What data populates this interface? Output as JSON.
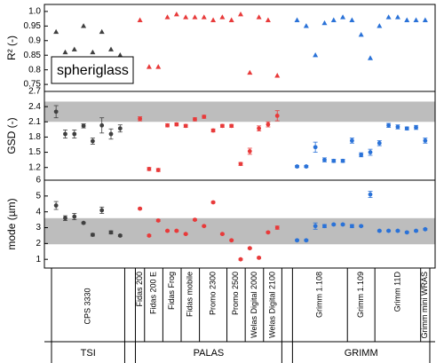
{
  "chart_data": {
    "type": "scatter",
    "annotation": "spheriglass",
    "groups": [
      {
        "name": "TSI",
        "color": "#404040",
        "devices": [
          "CPS 3330"
        ]
      },
      {
        "name": "PALAS",
        "color": "#e83a3a",
        "devices": [
          "Fidas 200",
          "Fidas 200 E",
          "Fidas Frog",
          "Fidas mobile",
          "Promo 2300",
          "Promo 2500",
          "Welas Digital 2000",
          "Welas Digital 2100"
        ]
      },
      {
        "name": "GRIMM",
        "color": "#2a72d8",
        "devices": [
          "Grimm 1.108",
          "Grimm 1.109",
          "Grimm 11D",
          "Grimm mini WRAS"
        ]
      }
    ],
    "panels": [
      {
        "ylabel": "R² (-)",
        "marker": "triangle",
        "ylim": [
          0.726,
          1.024
        ],
        "yticks": [
          0.75,
          0.8,
          0.85,
          0.9,
          0.95,
          {
            "value": 1,
            "label": "1.0"
          }
        ],
        "values": [
          [
            [
              0.93,
              0.86,
              0.87,
              0.95,
              0.86,
              0.93,
              0.87,
              0.85
            ]
          ],
          [
            [
              0.97
            ],
            [
              0.81,
              0.81
            ],
            [
              0.98,
              0.99
            ],
            [
              0.98,
              0.98
            ],
            [
              0.98,
              0.97,
              0.98
            ],
            [
              0.97,
              0.99
            ],
            [
              0.79,
              0.98
            ],
            [
              0.97,
              0.78
            ]
          ],
          [
            [
              0.97,
              0.95,
              0.85,
              0.96,
              0.97,
              0.98
            ],
            [
              0.97,
              0.92,
              0.84
            ],
            [
              0.95,
              0.98,
              0.98,
              0.97,
              0.97
            ],
            [
              0.97
            ]
          ]
        ]
      },
      {
        "ylabel": "GSD (-)",
        "marker": "circle",
        "ylim": [
          0.95,
          2.7
        ],
        "yticks": [
          1.2,
          1.5,
          1.8,
          2.1,
          2.4,
          2.7
        ],
        "shaded": [
          2.1,
          2.5
        ],
        "values": [
          [
            [
              2.3,
              1.86,
              1.86,
              2.02,
              1.72,
              2.03,
              1.86,
              1.97
            ]
          ],
          [
            [
              2.16
            ],
            [
              1.17,
              1.15
            ],
            [
              2.03,
              2.05
            ],
            [
              2.02,
              2.15
            ],
            [
              2.2,
              1.93,
              2.02
            ],
            [
              2.02,
              1.27
            ],
            [
              1.52,
              1.97
            ],
            [
              2.05,
              2.22
            ]
          ],
          [
            [
              1.22,
              1.22,
              1.6,
              1.35,
              1.33,
              1.33
            ],
            [
              1.73,
              1.45,
              1.5
            ],
            [
              1.68,
              2.03,
              2.0,
              1.97,
              1.99
            ],
            [
              1.73
            ]
          ]
        ],
        "errors": [
          [
            [
              0.12,
              0.08,
              0.08,
              0.04,
              0.06,
              0.15,
              0.1,
              0.07
            ]
          ],
          [
            [
              0.04
            ],
            [
              0.03,
              0.03
            ],
            [
              0.03,
              0.03
            ],
            [
              0.03,
              0.03
            ],
            [
              0.03,
              0.03,
              0.03
            ],
            [
              0.03,
              0.03
            ],
            [
              0.06,
              0.05
            ],
            [
              0.05,
              0.1
            ]
          ],
          [
            [
              0.02,
              0.02,
              0.1,
              0.04,
              0.03,
              0.03
            ],
            [
              0.05,
              0.04,
              0.06
            ],
            [
              0.05,
              0.04,
              0.04,
              0.03,
              0.04
            ],
            [
              0.05
            ]
          ]
        ]
      },
      {
        "ylabel": "mode (µm)",
        "marker": "circle",
        "ylim": [
          0.45,
          6
        ],
        "yticks": [
          1,
          2,
          3,
          4,
          5,
          6
        ],
        "shaded": [
          1.95,
          3.6
        ],
        "values": [
          [
            [
              4.4,
              3.6,
              3.7,
              3.3,
              2.55,
              4.1,
              2.7,
              2.5
            ]
          ],
          [
            [
              4.2
            ],
            [
              2.5,
              3.45
            ],
            [
              2.8,
              2.8
            ],
            [
              2.6,
              3.5
            ],
            [
              3.1,
              4.6,
              2.6
            ],
            [
              2.2,
              1.0
            ],
            [
              1.7,
              1.1
            ],
            [
              2.7,
              3.0
            ]
          ],
          [
            [
              2.2,
              2.2,
              3.1,
              3.1,
              3.2,
              3.2
            ],
            [
              3.1,
              3.1,
              5.1
            ],
            [
              2.8,
              2.8,
              2.8,
              2.7,
              2.8
            ],
            [
              2.9
            ]
          ]
        ],
        "errors": [
          [
            [
              0.25,
              0.15,
              0.2,
              0.05,
              0.08,
              0.2,
              0.1,
              0.05
            ]
          ],
          [
            [
              0.05
            ],
            [
              0.05,
              0.05
            ],
            [
              0.05,
              0.05
            ],
            [
              0.05,
              0.05
            ],
            [
              0.05,
              0.05,
              0.05
            ],
            [
              0.05,
              0.05
            ],
            [
              0.05,
              0.05
            ],
            [
              0.05,
              0.1
            ]
          ],
          [
            [
              0.05,
              0.05,
              0.2,
              0.1,
              0.05,
              0.05
            ],
            [
              0.1,
              0.05,
              0.2
            ],
            [
              0.05,
              0.05,
              0.05,
              0.05,
              0.05
            ],
            [
              0.05
            ]
          ]
        ]
      }
    ]
  }
}
